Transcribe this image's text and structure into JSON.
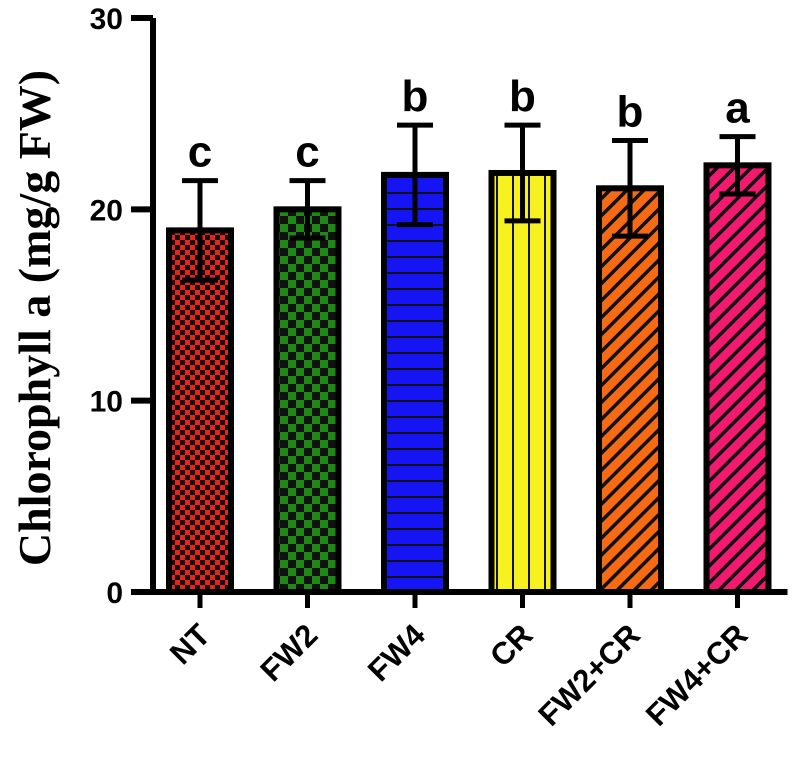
{
  "chart_data": {
    "type": "bar",
    "title": "",
    "xlabel": "",
    "ylabel": "Chlorophyll a (mg/g FW)",
    "ylim": [
      0,
      30
    ],
    "yticks": [
      0,
      10,
      20,
      30
    ],
    "categories": [
      "NT",
      "FW2",
      "FW4",
      "CR",
      "FW2+CR",
      "FW4+CR"
    ],
    "values": [
      18.9,
      20.0,
      21.8,
      21.9,
      21.1,
      22.3
    ],
    "errors": [
      2.6,
      1.5,
      2.6,
      2.5,
      2.5,
      1.5
    ],
    "significance": [
      "c",
      "c",
      "b",
      "b",
      "b",
      "a"
    ],
    "colors": [
      "#e8231b",
      "#1d8a14",
      "#1414f5",
      "#f7f21f",
      "#f66a14",
      "#f2196e"
    ],
    "patterns": [
      "fine-check",
      "check",
      "horizontal",
      "vertical",
      "diagonal",
      "diagonal"
    ]
  }
}
